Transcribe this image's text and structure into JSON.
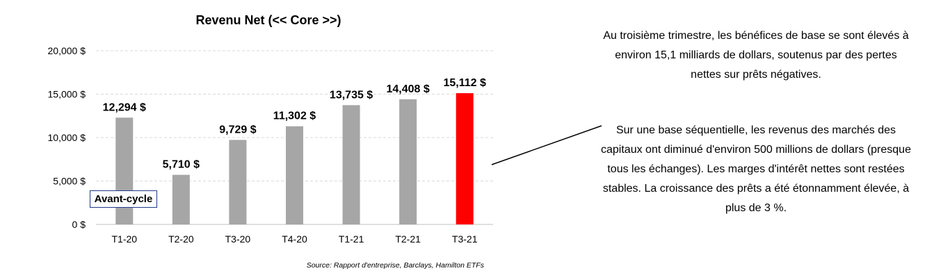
{
  "chart_data": {
    "type": "bar",
    "title": "Revenu Net (<< Core >>)",
    "categories": [
      "T1-20",
      "T2-20",
      "T3-20",
      "T4-20",
      "T1-21",
      "T2-21",
      "T3-21"
    ],
    "values": [
      12294,
      5710,
      9729,
      11302,
      13735,
      14408,
      15112
    ],
    "data_labels": [
      "12,294 $",
      "5,710 $",
      "9,729 $",
      "11,302 $",
      "13,735 $",
      "14,408 $",
      "15,112 $"
    ],
    "y_ticks": [
      "0 $",
      "5,000 $",
      "10,000 $",
      "15,000 $",
      "20,000 $"
    ],
    "y_tick_values": [
      0,
      5000,
      10000,
      15000,
      20000
    ],
    "ylim": [
      0,
      20000
    ],
    "grid": "horizontal dashed",
    "colors": {
      "default": "#a6a6a6",
      "highlight": "#ff0000"
    },
    "highlight_index": 6,
    "annotation": "Avant-cycle",
    "source": "Source: Rapport d'entreprise, Barclays, Hamilton ETFs"
  },
  "commentary": {
    "paragraph1": "Au troisième trimestre, les bénéfices de base se sont élevés à environ 15,1 milliards de dollars, soutenus par des pertes nettes sur prêts négatives.",
    "paragraph2": "Sur une base séquentielle, les revenus des marchés des capitaux ont diminué d'environ 500 millions de dollars (presque tous les échanges). Les marges d'intérêt nettes sont restées stables. La croissance des prêts a été étonnamment élevée, à plus de 3 %."
  }
}
